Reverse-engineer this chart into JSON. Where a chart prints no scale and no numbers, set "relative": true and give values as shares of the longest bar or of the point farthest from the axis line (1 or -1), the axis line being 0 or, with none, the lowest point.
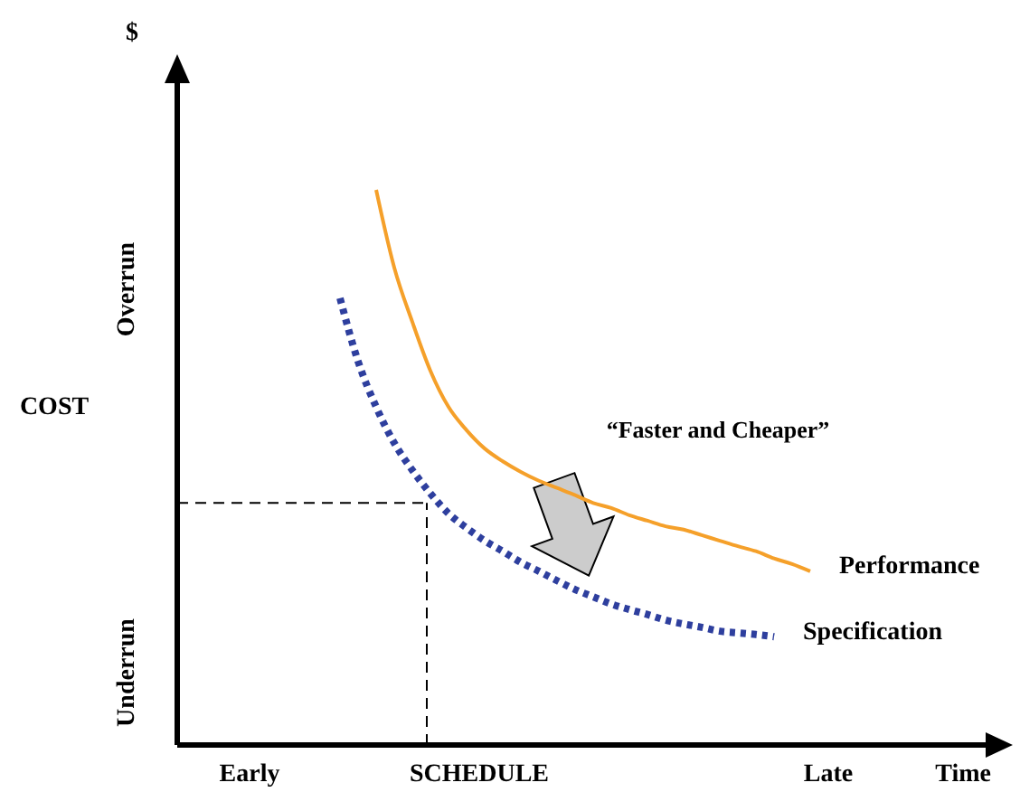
{
  "chart_data": {
    "type": "line",
    "relative": true,
    "xlabel": "SCHEDULE",
    "ylabel": "COST",
    "legend": false,
    "grid": false,
    "categories": [
      null,
      null,
      null,
      "Early",
      null,
      null,
      null,
      null,
      null,
      null,
      null,
      null,
      null,
      null,
      null,
      null,
      null,
      null,
      null,
      null,
      null,
      null,
      null,
      null,
      null,
      null,
      null,
      null,
      null,
      null,
      null,
      null,
      null,
      null,
      null,
      "Late",
      null,
      null,
      null,
      null,
      null,
      null,
      null
    ],
    "series": [
      {
        "name": "Performance",
        "color": "#f5a02a",
        "line_style": "solid",
        "values": [
          null,
          null,
          null,
          null,
          null,
          null,
          null,
          null,
          null,
          null,
          1,
          0.86,
          0.762,
          0.674,
          0.609,
          0.567,
          0.534,
          0.511,
          0.492,
          0.476,
          0.463,
          0.45,
          0.436,
          0.427,
          0.414,
          0.404,
          0.394,
          0.388,
          0.378,
          0.368,
          0.358,
          0.349,
          0.336,
          0.326,
          0.313,
          null,
          null,
          null,
          null,
          null,
          null,
          null,
          null
        ]
      },
      {
        "name": "Specification",
        "color": "#2e3f9e",
        "line_style": "dotted",
        "values": [
          null,
          null,
          null,
          null,
          null,
          null,
          null,
          null,
          0.805,
          0.691,
          0.609,
          0.544,
          0.495,
          0.453,
          0.417,
          0.391,
          0.368,
          0.349,
          0.329,
          0.313,
          0.296,
          0.28,
          0.267,
          0.254,
          0.244,
          0.235,
          0.225,
          0.218,
          0.212,
          0.205,
          0.202,
          0.199,
          0.195,
          null,
          null,
          null,
          null,
          null,
          null,
          null,
          null,
          null,
          null
        ]
      }
    ],
    "ref_lines": [
      {
        "axis": "y",
        "value": 0.436,
        "color": "#000000",
        "line_style": "dashed"
      }
    ],
    "annotations": [
      "$",
      "Overrun",
      "Underrun",
      "“Faster and Cheaper”",
      "Time"
    ]
  }
}
